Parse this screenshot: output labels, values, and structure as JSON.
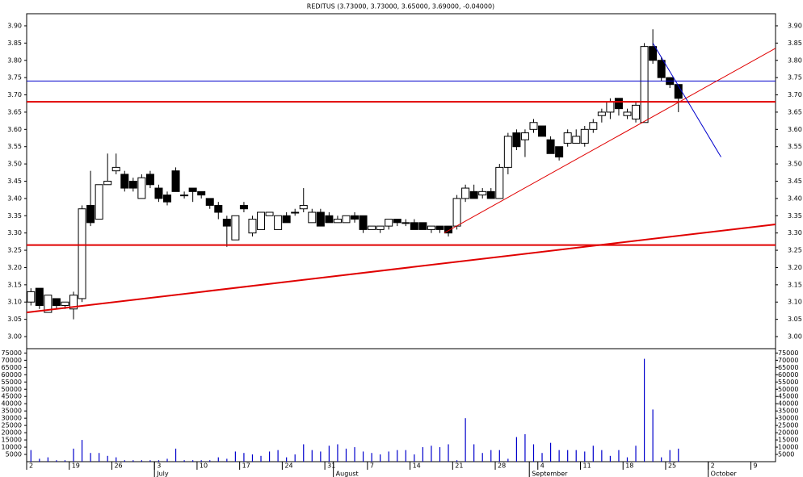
{
  "chart_data": {
    "type": "candlestick",
    "title": "REDITUS (3.73000, 3.73000, 3.65000, 3.69000, -0.04000)",
    "open": [
      3.1,
      3.14,
      3.07,
      3.11,
      3.09,
      3.08,
      3.11,
      3.38,
      3.34,
      3.44,
      3.48,
      3.47,
      3.45,
      3.4,
      3.47,
      3.43,
      3.41,
      3.48,
      3.41,
      3.43,
      3.42,
      3.4,
      3.38,
      3.34,
      3.28,
      3.38,
      3.3,
      3.31,
      3.35,
      3.31,
      3.35,
      3.36,
      3.37,
      3.33,
      3.36,
      3.35,
      3.33,
      3.33,
      3.35,
      3.35,
      3.31,
      3.31,
      3.32,
      3.34,
      3.33,
      3.33,
      3.33,
      3.31,
      3.32,
      3.32,
      3.32,
      3.4,
      3.42,
      3.41,
      3.42,
      3.4,
      3.49,
      3.59,
      3.57,
      3.6,
      3.61,
      3.57,
      3.55,
      3.56,
      3.56,
      3.56,
      3.6,
      3.64,
      3.65,
      3.69,
      3.64,
      3.63,
      3.62,
      3.84,
      3.8,
      3.75,
      3.73
    ],
    "high": [
      3.14,
      3.14,
      3.12,
      3.11,
      3.1,
      3.13,
      3.38,
      3.48,
      3.44,
      3.53,
      3.53,
      3.48,
      3.46,
      3.47,
      3.48,
      3.44,
      3.42,
      3.49,
      3.42,
      3.43,
      3.42,
      3.4,
      3.39,
      3.35,
      3.35,
      3.39,
      3.35,
      3.36,
      3.36,
      3.35,
      3.36,
      3.37,
      3.43,
      3.37,
      3.37,
      3.36,
      3.35,
      3.35,
      3.36,
      3.35,
      3.32,
      3.32,
      3.34,
      3.34,
      3.34,
      3.34,
      3.33,
      3.32,
      3.32,
      3.32,
      3.41,
      3.44,
      3.44,
      3.43,
      3.43,
      3.5,
      3.59,
      3.6,
      3.6,
      3.63,
      3.61,
      3.58,
      3.55,
      3.6,
      3.6,
      3.61,
      3.63,
      3.66,
      3.69,
      3.69,
      3.66,
      3.68,
      3.85,
      3.89,
      3.81,
      3.75,
      3.73
    ],
    "low": [
      3.09,
      3.08,
      3.07,
      3.08,
      3.08,
      3.05,
      3.1,
      3.32,
      3.34,
      3.44,
      3.47,
      3.42,
      3.42,
      3.4,
      3.43,
      3.39,
      3.38,
      3.42,
      3.4,
      3.39,
      3.4,
      3.37,
      3.34,
      3.26,
      3.28,
      3.36,
      3.29,
      3.31,
      3.35,
      3.31,
      3.33,
      3.35,
      3.36,
      3.33,
      3.32,
      3.33,
      3.33,
      3.33,
      3.33,
      3.3,
      3.31,
      3.3,
      3.31,
      3.32,
      3.32,
      3.31,
      3.31,
      3.3,
      3.3,
      3.29,
      3.31,
      3.39,
      3.4,
      3.4,
      3.4,
      3.4,
      3.47,
      3.54,
      3.52,
      3.59,
      3.58,
      3.53,
      3.51,
      3.55,
      3.56,
      3.55,
      3.59,
      3.62,
      3.63,
      3.64,
      3.63,
      3.62,
      3.62,
      3.79,
      3.74,
      3.72,
      3.65
    ],
    "close": [
      3.13,
      3.09,
      3.12,
      3.09,
      3.1,
      3.12,
      3.37,
      3.33,
      3.44,
      3.45,
      3.49,
      3.43,
      3.43,
      3.46,
      3.44,
      3.4,
      3.39,
      3.42,
      3.41,
      3.42,
      3.41,
      3.38,
      3.36,
      3.32,
      3.35,
      3.37,
      3.34,
      3.36,
      3.36,
      3.35,
      3.33,
      3.36,
      3.38,
      3.36,
      3.32,
      3.33,
      3.34,
      3.35,
      3.34,
      3.31,
      3.32,
      3.32,
      3.34,
      3.33,
      3.33,
      3.31,
      3.31,
      3.32,
      3.31,
      3.3,
      3.4,
      3.43,
      3.4,
      3.42,
      3.4,
      3.49,
      3.58,
      3.55,
      3.59,
      3.62,
      3.58,
      3.53,
      3.52,
      3.59,
      3.58,
      3.6,
      3.62,
      3.65,
      3.68,
      3.66,
      3.65,
      3.67,
      3.84,
      3.8,
      3.75,
      3.73,
      3.69
    ],
    "volume": [
      8000,
      2000,
      3000,
      1000,
      1000,
      9000,
      15000,
      6000,
      6000,
      4000,
      3000,
      1000,
      1000,
      1000,
      1000,
      1000,
      2000,
      9000,
      1000,
      1000,
      1000,
      1000,
      3000,
      2000,
      7000,
      6000,
      5000,
      4000,
      7000,
      8000,
      3000,
      5000,
      12000,
      8000,
      7000,
      11000,
      12000,
      9000,
      10000,
      7000,
      6000,
      5000,
      7000,
      8000,
      8000,
      5000,
      10000,
      11000,
      10000,
      12000,
      1000,
      30000,
      12000,
      6000,
      8000,
      8000,
      2000,
      17000,
      19000,
      12000,
      6000,
      13000,
      8000,
      8000,
      8000,
      7000,
      11000,
      8000,
      4000,
      8000,
      3000,
      11000,
      71000,
      36000,
      3000,
      8000,
      9000
    ],
    "volume_color": "#0000cc",
    "xlim": [
      -0.5,
      87.4
    ],
    "ylim": [
      2.965,
      3.935
    ],
    "yticks": [
      {
        "value": 3.0,
        "label": "3.00"
      },
      3.05,
      {
        "value": 3.1,
        "label": "3.10"
      },
      3.15,
      {
        "value": 3.2,
        "label": "3.20"
      },
      3.25,
      {
        "value": 3.3,
        "label": "3.30"
      },
      3.35,
      {
        "value": 3.4,
        "label": "3.40"
      },
      3.45,
      {
        "value": 3.5,
        "label": "3.50"
      },
      3.55,
      {
        "value": 3.6,
        "label": "3.60"
      },
      3.65,
      {
        "value": 3.7,
        "label": "3.70"
      },
      3.75,
      {
        "value": 3.8,
        "label": "3.80"
      },
      3.85,
      {
        "value": 3.9,
        "label": "3.90"
      }
    ],
    "y2lim": [
      0,
      78000
    ],
    "y2ticks": [
      5000,
      10000,
      15000,
      20000,
      25000,
      30000,
      35000,
      40000,
      45000,
      50000,
      55000,
      60000,
      65000,
      70000,
      75000
    ],
    "xticks": [
      {
        "value": -0.5,
        "label": "2"
      },
      {
        "value": 4.5,
        "label": "19"
      },
      {
        "value": 9.5,
        "label": "26"
      },
      {
        "value": 14.5,
        "label": "3"
      },
      {
        "value": 19.5,
        "label": "10"
      },
      {
        "value": 24.5,
        "label": "17"
      },
      {
        "value": 29.5,
        "label": "24"
      },
      {
        "value": 34.5,
        "label": "31"
      },
      {
        "value": 39.5,
        "label": "7"
      },
      {
        "value": 44.5,
        "label": "14"
      },
      {
        "value": 49.5,
        "label": "21"
      },
      {
        "value": 54.5,
        "label": "28"
      },
      {
        "value": 59.5,
        "label": "4"
      },
      {
        "value": 64.5,
        "label": "11"
      },
      {
        "value": 69.5,
        "label": "18"
      },
      {
        "value": 74.5,
        "label": "25"
      },
      {
        "value": 79.5,
        "label": "2"
      },
      {
        "value": 84.5,
        "label": "9"
      }
    ],
    "month_labels": [
      {
        "value": 14.5,
        "label": "July"
      },
      {
        "value": 35.5,
        "label": "August"
      },
      {
        "value": 58.5,
        "label": "September"
      },
      {
        "value": 79.5,
        "label": "October"
      }
    ],
    "hlines": [
      {
        "value": 3.74,
        "color": "#0000cc"
      },
      {
        "value": 3.68,
        "color": "#e00000"
      },
      {
        "value": 3.265,
        "color": "#e00000"
      }
    ],
    "trendlines": [
      {
        "points": [
          [
            -0.5,
            3.07
          ],
          [
            87.4,
            3.325
          ]
        ],
        "color": "#e00000"
      },
      {
        "points": [
          [
            48.5,
            3.3
          ],
          [
            87.4,
            3.835
          ]
        ],
        "color": "#e00000"
      },
      {
        "points": [
          [
            73,
            3.85
          ],
          [
            81,
            3.52
          ]
        ],
        "color": "#0000cc"
      }
    ]
  }
}
